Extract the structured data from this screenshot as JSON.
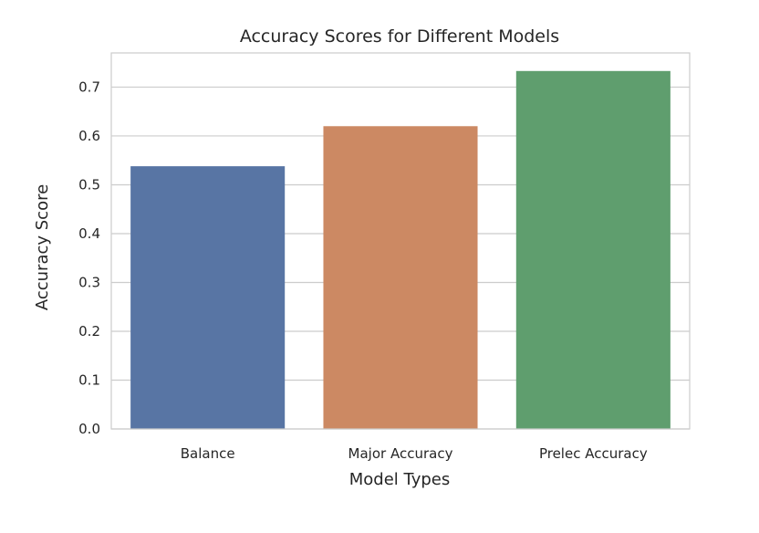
{
  "chart_data": {
    "type": "bar",
    "title": "Accuracy Scores for Different Models",
    "xlabel": "Model Types",
    "ylabel": "Accuracy Score",
    "categories": [
      "Balance",
      "Major Accuracy",
      "Prelec Accuracy"
    ],
    "values": [
      0.538,
      0.62,
      0.733
    ],
    "ylim": [
      0,
      0.77
    ],
    "yticks": [
      0.0,
      0.1,
      0.2,
      0.3,
      0.4,
      0.5,
      0.6,
      0.7
    ],
    "ytick_labels": [
      "0.0",
      "0.1",
      "0.2",
      "0.3",
      "0.4",
      "0.5",
      "0.6",
      "0.7"
    ],
    "colors": [
      "#5875a4",
      "#cc8963",
      "#5f9e6e"
    ],
    "grid": true,
    "grid_color": "#cccccc",
    "background": "#ffffff"
  }
}
